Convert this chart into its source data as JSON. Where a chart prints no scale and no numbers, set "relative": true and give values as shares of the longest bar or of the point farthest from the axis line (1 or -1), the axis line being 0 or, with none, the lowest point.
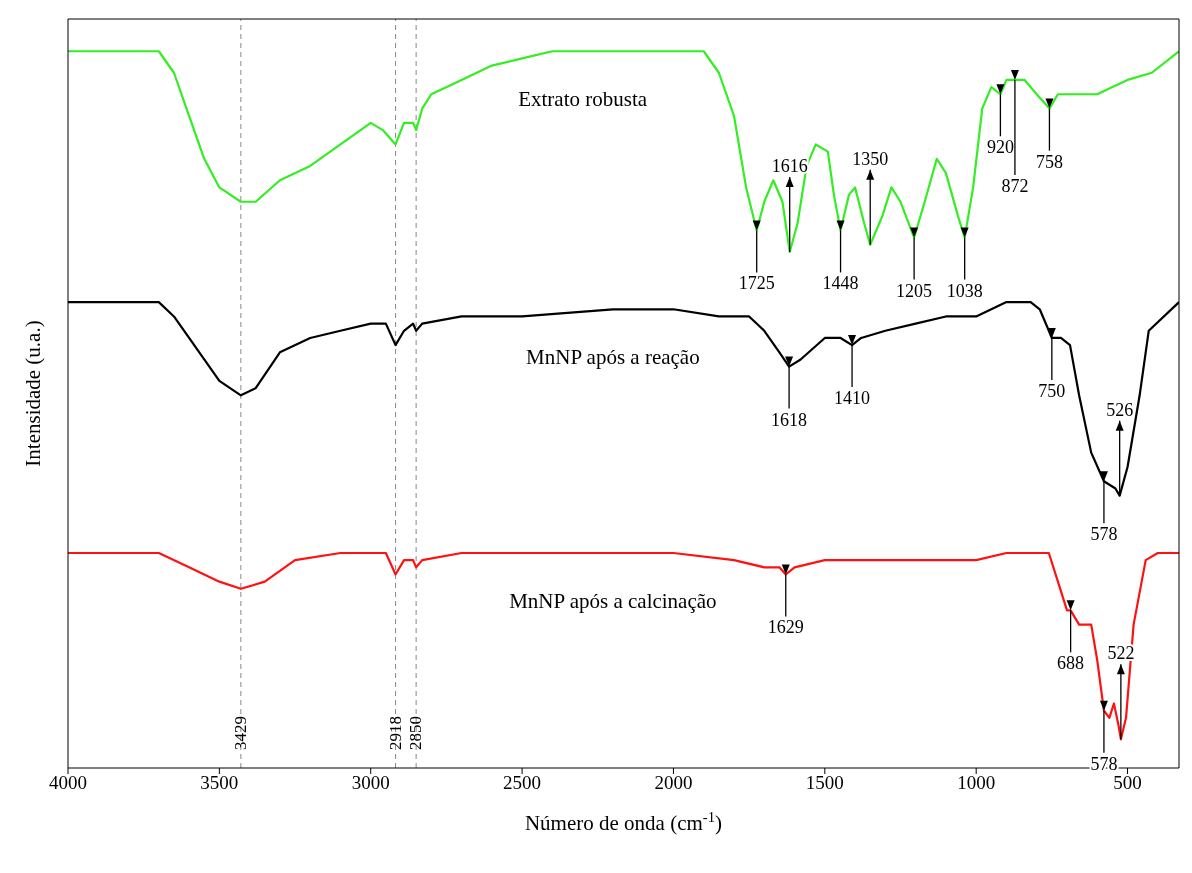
{
  "chart_data": {
    "type": "line",
    "relative": true,
    "xlabel": "Número de onda (cm$^{-1}$)",
    "ylabel": "Intensidade (u.a.)",
    "xlim": [
      4000,
      330
    ],
    "xticks": [
      4000,
      3500,
      3000,
      2500,
      2000,
      1500,
      1000,
      500
    ],
    "marker": "none",
    "line_style": "solid",
    "series": [
      {
        "name": "Extrato robusta",
        "color": "#33ee22",
        "x": [
          4000,
          3700,
          3650,
          3600,
          3550,
          3500,
          3429,
          3380,
          3300,
          3200,
          3100,
          3000,
          2960,
          2918,
          2890,
          2860,
          2850,
          2830,
          2800,
          2700,
          2600,
          2500,
          2400,
          2300,
          2000,
          1900,
          1850,
          1800,
          1760,
          1725,
          1700,
          1670,
          1640,
          1616,
          1590,
          1560,
          1530,
          1490,
          1470,
          1448,
          1420,
          1400,
          1370,
          1350,
          1310,
          1280,
          1250,
          1205,
          1170,
          1130,
          1100,
          1060,
          1038,
          1010,
          980,
          950,
          920,
          900,
          872,
          840,
          800,
          758,
          730,
          700,
          650,
          600,
          550,
          500,
          420,
          330
        ],
        "values": [
          1.0,
          1.0,
          0.97,
          0.91,
          0.85,
          0.81,
          0.79,
          0.79,
          0.82,
          0.84,
          0.87,
          0.9,
          0.89,
          0.87,
          0.9,
          0.9,
          0.89,
          0.92,
          0.94,
          0.96,
          0.98,
          0.99,
          1.0,
          1.0,
          1.0,
          1.0,
          0.97,
          0.91,
          0.81,
          0.75,
          0.79,
          0.82,
          0.79,
          0.72,
          0.76,
          0.84,
          0.87,
          0.86,
          0.8,
          0.75,
          0.8,
          0.81,
          0.76,
          0.73,
          0.77,
          0.81,
          0.79,
          0.74,
          0.79,
          0.85,
          0.83,
          0.77,
          0.74,
          0.81,
          0.92,
          0.95,
          0.94,
          0.96,
          0.96,
          0.96,
          0.94,
          0.92,
          0.94,
          0.94,
          0.94,
          0.94,
          0.95,
          0.96,
          0.97,
          1.0
        ]
      },
      {
        "name": "MnNP após a reação",
        "color": "#000000",
        "x": [
          4000,
          3700,
          3650,
          3600,
          3550,
          3500,
          3429,
          3380,
          3300,
          3200,
          3100,
          3000,
          2950,
          2918,
          2890,
          2860,
          2850,
          2830,
          2700,
          2500,
          2200,
          2000,
          1850,
          1750,
          1700,
          1650,
          1618,
          1580,
          1500,
          1448,
          1410,
          1380,
          1300,
          1200,
          1100,
          1000,
          900,
          820,
          790,
          760,
          750,
          720,
          690,
          660,
          620,
          578,
          540,
          526,
          500,
          460,
          430,
          330
        ],
        "values": [
          0.65,
          0.65,
          0.63,
          0.6,
          0.57,
          0.54,
          0.52,
          0.53,
          0.58,
          0.6,
          0.61,
          0.62,
          0.62,
          0.59,
          0.61,
          0.62,
          0.61,
          0.62,
          0.63,
          0.63,
          0.64,
          0.64,
          0.63,
          0.63,
          0.61,
          0.58,
          0.56,
          0.57,
          0.6,
          0.6,
          0.59,
          0.6,
          0.61,
          0.62,
          0.63,
          0.63,
          0.65,
          0.65,
          0.64,
          0.61,
          0.6,
          0.6,
          0.59,
          0.52,
          0.44,
          0.4,
          0.39,
          0.38,
          0.42,
          0.52,
          0.61,
          0.65
        ]
      },
      {
        "name": "MnNP após a calcinação",
        "color": "#ff1111",
        "x": [
          4000,
          3700,
          3600,
          3500,
          3429,
          3350,
          3250,
          3100,
          3000,
          2950,
          2918,
          2890,
          2860,
          2850,
          2830,
          2700,
          2500,
          2200,
          2000,
          1800,
          1700,
          1650,
          1629,
          1600,
          1500,
          1300,
          1100,
          1000,
          900,
          800,
          760,
          730,
          700,
          688,
          660,
          620,
          600,
          578,
          560,
          545,
          530,
          522,
          505,
          480,
          440,
          400,
          330
        ],
        "values": [
          0.3,
          0.3,
          0.28,
          0.26,
          0.25,
          0.26,
          0.29,
          0.3,
          0.3,
          0.3,
          0.27,
          0.29,
          0.29,
          0.28,
          0.29,
          0.3,
          0.3,
          0.3,
          0.3,
          0.29,
          0.28,
          0.28,
          0.27,
          0.28,
          0.29,
          0.29,
          0.29,
          0.29,
          0.3,
          0.3,
          0.3,
          0.26,
          0.22,
          0.22,
          0.2,
          0.2,
          0.15,
          0.08,
          0.07,
          0.09,
          0.06,
          0.04,
          0.07,
          0.2,
          0.29,
          0.3,
          0.3
        ]
      }
    ],
    "ref_lines": [
      {
        "axis": "x",
        "value": 3429,
        "label": "3429",
        "color": "#888888",
        "line_style": "dashed"
      },
      {
        "axis": "x",
        "value": 2918,
        "label": "2918",
        "color": "#888888",
        "line_style": "dashed"
      },
      {
        "axis": "x",
        "value": 2850,
        "label": "2850",
        "color": "#888888",
        "line_style": "dashed"
      }
    ],
    "annotations": [
      {
        "text": "1725",
        "x": 1725,
        "y": 0.75
      },
      {
        "text": "1616",
        "x": 1616,
        "y": 0.72
      },
      {
        "text": "1448",
        "x": 1448,
        "y": 0.75
      },
      {
        "text": "1350",
        "x": 1350,
        "y": 0.73
      },
      {
        "text": "1205",
        "x": 1205,
        "y": 0.74
      },
      {
        "text": "1038",
        "x": 1038,
        "y": 0.74
      },
      {
        "text": "920",
        "x": 920,
        "y": 0.94
      },
      {
        "text": "872",
        "x": 872,
        "y": 0.96
      },
      {
        "text": "758",
        "x": 758,
        "y": 0.92
      },
      {
        "text": "1618",
        "x": 1618,
        "y": 0.56
      },
      {
        "text": "1410",
        "x": 1410,
        "y": 0.59
      },
      {
        "text": "750",
        "x": 750,
        "y": 0.6
      },
      {
        "text": "578",
        "x": 578,
        "y": 0.4
      },
      {
        "text": "526",
        "x": 526,
        "y": 0.38
      },
      {
        "text": "1629",
        "x": 1629,
        "y": 0.27
      },
      {
        "text": "688",
        "x": 688,
        "y": 0.22
      },
      {
        "text": "578",
        "x": 578,
        "y": 0.08
      },
      {
        "text": "522",
        "x": 522,
        "y": 0.04
      }
    ]
  }
}
